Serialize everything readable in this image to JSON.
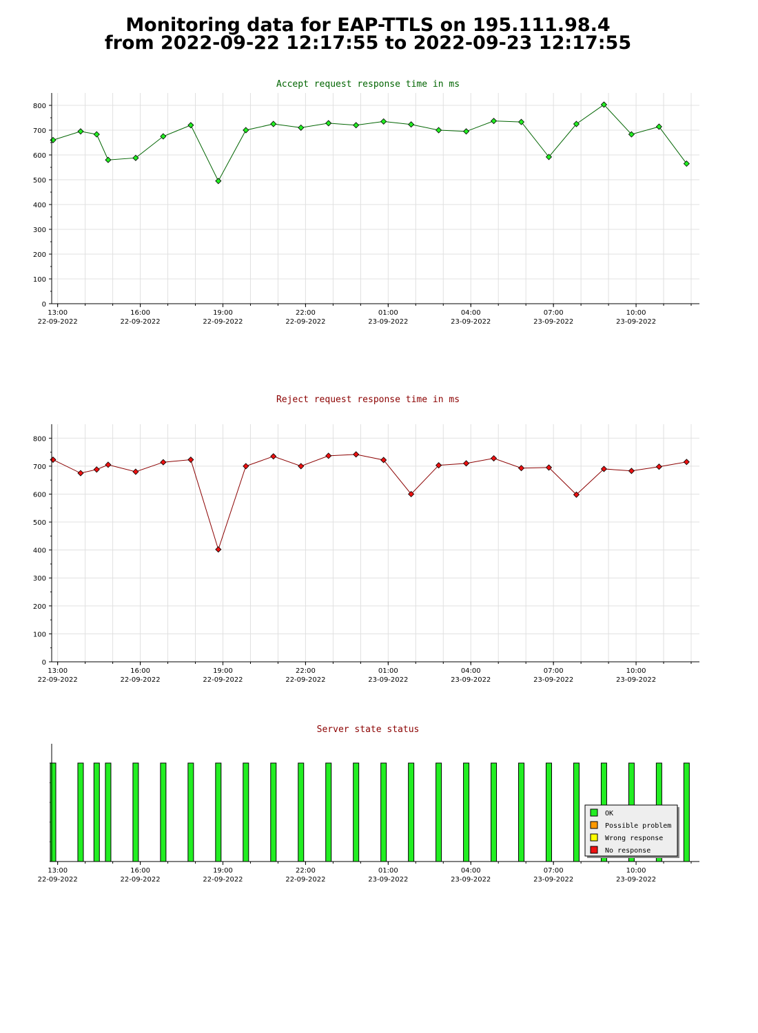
{
  "page": {
    "title_line1": "Monitoring data for EAP-TTLS on 195.111.98.4",
    "title_line2": "from 2022-09-22 12:17:55 to 2022-09-23 12:17:55"
  },
  "x_axis": {
    "ticks": [
      {
        "time": "13:00",
        "date": "22-09-2022"
      },
      {
        "time": "16:00",
        "date": "22-09-2022"
      },
      {
        "time": "19:00",
        "date": "22-09-2022"
      },
      {
        "time": "22:00",
        "date": "22-09-2022"
      },
      {
        "time": "01:00",
        "date": "23-09-2022"
      },
      {
        "time": "04:00",
        "date": "23-09-2022"
      },
      {
        "time": "07:00",
        "date": "23-09-2022"
      },
      {
        "time": "10:00",
        "date": "23-09-2022"
      }
    ]
  },
  "chart_data": [
    {
      "type": "line",
      "title": "Accept request response time in ms",
      "color": "#006400",
      "marker_color": "#22ee22",
      "ylim": [
        0,
        850
      ],
      "yticks": [
        0,
        100,
        200,
        300,
        400,
        500,
        600,
        700,
        800
      ],
      "grid": true,
      "x": [
        "12:50",
        "13:50",
        "14:25",
        "14:50",
        "15:50",
        "16:50",
        "17:50",
        "18:50",
        "19:50",
        "20:50",
        "21:50",
        "22:50",
        "23:50",
        "00:50",
        "01:50",
        "02:50",
        "03:50",
        "04:50",
        "05:50",
        "06:50",
        "07:50",
        "08:50",
        "09:50",
        "10:50",
        "11:50"
      ],
      "values": [
        660,
        695,
        683,
        580,
        588,
        675,
        720,
        495,
        700,
        725,
        710,
        728,
        720,
        735,
        723,
        700,
        695,
        737,
        733,
        592,
        725,
        803,
        683,
        714,
        565
      ]
    },
    {
      "type": "line",
      "title": "Reject request response time in ms",
      "color": "#8b0000",
      "marker_color": "#ee1111",
      "ylim": [
        0,
        850
      ],
      "yticks": [
        0,
        100,
        200,
        300,
        400,
        500,
        600,
        700,
        800
      ],
      "grid": true,
      "x": [
        "12:50",
        "13:50",
        "14:25",
        "14:50",
        "15:50",
        "16:50",
        "17:50",
        "18:50",
        "19:50",
        "20:50",
        "21:50",
        "22:50",
        "23:50",
        "00:50",
        "01:50",
        "02:50",
        "03:50",
        "04:50",
        "05:50",
        "06:50",
        "07:50",
        "08:50",
        "09:50",
        "10:50",
        "11:50"
      ],
      "values": [
        723,
        675,
        688,
        705,
        680,
        714,
        723,
        402,
        700,
        735,
        700,
        737,
        742,
        722,
        600,
        703,
        710,
        728,
        693,
        695,
        598,
        690,
        683,
        698,
        715
      ]
    },
    {
      "type": "bar",
      "title": "Server state status",
      "color": "#8b0000",
      "x": [
        "12:50",
        "13:50",
        "14:25",
        "14:50",
        "15:50",
        "16:50",
        "17:50",
        "18:50",
        "19:50",
        "20:50",
        "21:50",
        "22:50",
        "23:50",
        "00:50",
        "01:50",
        "02:50",
        "03:50",
        "04:50",
        "05:50",
        "06:50",
        "07:50",
        "08:50",
        "09:50",
        "10:50",
        "11:50"
      ],
      "status": [
        "OK",
        "OK",
        "OK",
        "OK",
        "OK",
        "OK",
        "OK",
        "OK",
        "OK",
        "OK",
        "OK",
        "OK",
        "OK",
        "OK",
        "OK",
        "OK",
        "OK",
        "OK",
        "OK",
        "OK",
        "OK",
        "OK",
        "OK",
        "OK",
        "OK"
      ],
      "legend_position": "bottom-right",
      "legend": [
        {
          "label": "OK",
          "color": "#22ee22"
        },
        {
          "label": "Possible problem",
          "color": "#ff9900"
        },
        {
          "label": "Wrong response",
          "color": "#ffff00"
        },
        {
          "label": "No response",
          "color": "#ee1111"
        }
      ]
    }
  ]
}
